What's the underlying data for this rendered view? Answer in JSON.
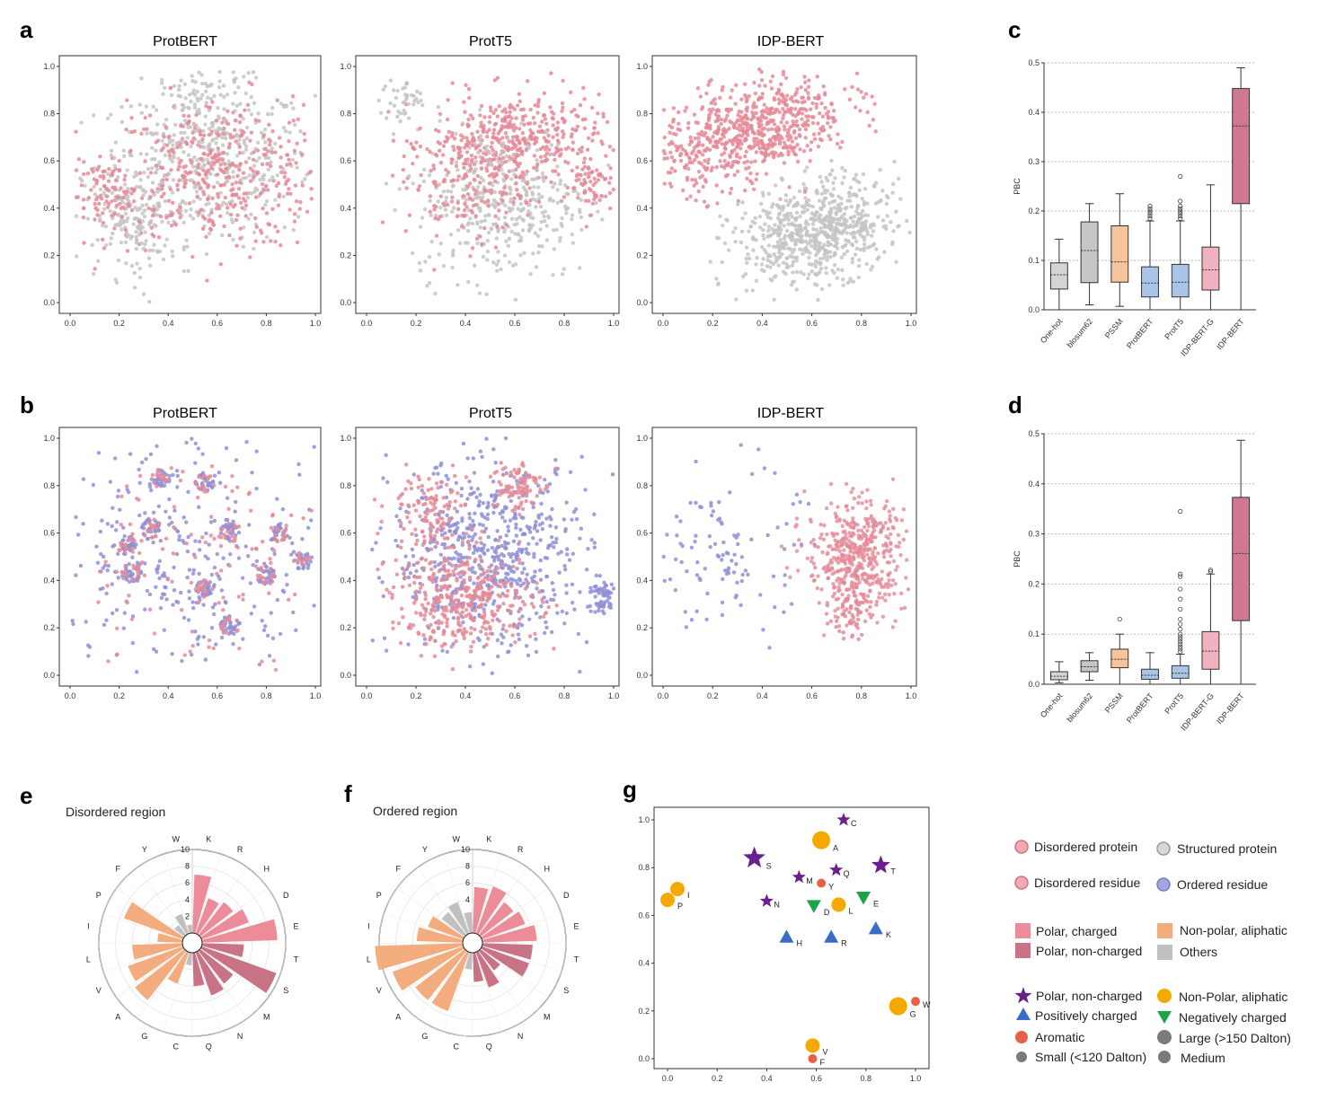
{
  "colors": {
    "disordered": "#e58a96",
    "structured": "#c4c4c4",
    "ordered": "#8f8fd6",
    "polar_charged": "#ec8c99",
    "polar_noncharged": "#c97387",
    "nonpolar_aliphatic": "#f3ac7e",
    "others": "#c0c0c0",
    "star": "#6b1f8e",
    "circle": "#f5a800",
    "triangle_up": "#3b6cc5",
    "triangle_down": "#1aa34a",
    "aromatic": "#e6604a",
    "gray_marker": "#7a7a7a",
    "box_onehot": "#d4d4d4",
    "box_blosum": "#c6c6c6",
    "box_pssm": "#f5c39c",
    "box_prot": "#a9c4e6",
    "box_idpg": "#f0b2bf",
    "box_idp": "#cf7890"
  },
  "panel_labels": {
    "a": "a",
    "b": "b",
    "c": "c",
    "d": "d",
    "e": "e",
    "f": "f",
    "g": "g"
  },
  "scatter_titles": {
    "a1": "ProtBERT",
    "a2": "ProtT5",
    "a3": "IDP-BERT",
    "b1": "ProtBERT",
    "b2": "ProtT5",
    "b3": "IDP-BERT"
  },
  "scatter_ticks": [
    "0.0",
    "0.2",
    "0.4",
    "0.6",
    "0.8",
    "1.0"
  ],
  "chart_data": [
    {
      "type": "box",
      "panel": "c",
      "ylabel": "PBC",
      "ylim": [
        0,
        0.5
      ],
      "yticks": [
        "0.0",
        "0.1",
        "0.2",
        "0.3",
        "0.4",
        "0.5"
      ],
      "categories": [
        "One-hot",
        "blosum62",
        "PSSM",
        "ProtBERT",
        "ProtT5",
        "IDP-BERT-G",
        "IDP-BERT"
      ],
      "boxes": [
        {
          "min": 0.0,
          "q1": 0.042,
          "median": 0.071,
          "q3": 0.095,
          "max": 0.143,
          "outliers": []
        },
        {
          "min": 0.01,
          "q1": 0.055,
          "median": 0.12,
          "q3": 0.178,
          "max": 0.215,
          "outliers": []
        },
        {
          "min": 0.007,
          "q1": 0.056,
          "median": 0.097,
          "q3": 0.17,
          "max": 0.235,
          "outliers": []
        },
        {
          "min": 0.0,
          "q1": 0.026,
          "median": 0.054,
          "q3": 0.087,
          "max": 0.18,
          "outliers": [
            0.185,
            0.19,
            0.195,
            0.2,
            0.205,
            0.21
          ]
        },
        {
          "min": 0.0,
          "q1": 0.026,
          "median": 0.056,
          "q3": 0.092,
          "max": 0.18,
          "outliers": [
            0.185,
            0.19,
            0.195,
            0.2,
            0.205,
            0.21,
            0.22,
            0.27
          ]
        },
        {
          "min": 0.0,
          "q1": 0.04,
          "median": 0.081,
          "q3": 0.127,
          "max": 0.253,
          "outliers": []
        },
        {
          "min": 0.0,
          "q1": 0.215,
          "median": 0.372,
          "q3": 0.448,
          "max": 0.49,
          "outliers": []
        }
      ]
    },
    {
      "type": "box",
      "panel": "d",
      "ylabel": "PBC",
      "ylim": [
        0,
        0.5
      ],
      "yticks": [
        "0.0",
        "0.1",
        "0.2",
        "0.3",
        "0.4",
        "0.5"
      ],
      "categories": [
        "One-hot",
        "blosum62",
        "PSSM",
        "ProtBERT",
        "ProtT5",
        "IDP-BERT-G",
        "IDP-BERT"
      ],
      "boxes": [
        {
          "min": 0.003,
          "q1": 0.009,
          "median": 0.016,
          "q3": 0.025,
          "max": 0.045,
          "outliers": []
        },
        {
          "min": 0.008,
          "q1": 0.025,
          "median": 0.035,
          "q3": 0.047,
          "max": 0.063,
          "outliers": []
        },
        {
          "min": 0.0,
          "q1": 0.033,
          "median": 0.05,
          "q3": 0.07,
          "max": 0.1,
          "outliers": [
            0.13
          ]
        },
        {
          "min": 0.0,
          "q1": 0.01,
          "median": 0.018,
          "q3": 0.03,
          "max": 0.063,
          "outliers": []
        },
        {
          "min": 0.0,
          "q1": 0.012,
          "median": 0.022,
          "q3": 0.037,
          "max": 0.06,
          "outliers": [
            0.065,
            0.07,
            0.075,
            0.08,
            0.085,
            0.09,
            0.095,
            0.1,
            0.11,
            0.12,
            0.13,
            0.15,
            0.17,
            0.19,
            0.215,
            0.22,
            0.345
          ]
        },
        {
          "min": 0.0,
          "q1": 0.03,
          "median": 0.066,
          "q3": 0.105,
          "max": 0.22,
          "outliers": [
            0.225,
            0.228
          ]
        },
        {
          "min": 0.0,
          "q1": 0.127,
          "median": 0.261,
          "q3": 0.373,
          "max": 0.487,
          "outliers": []
        }
      ]
    },
    {
      "type": "polar-bar",
      "panel": "e",
      "title": "Disordered region",
      "rticks": [
        "2",
        "4",
        "6",
        "8",
        "10"
      ],
      "rmax": 10,
      "categories": [
        "K",
        "R",
        "H",
        "D",
        "E",
        "T",
        "S",
        "M",
        "N",
        "Q",
        "C",
        "G",
        "A",
        "V",
        "L",
        "I",
        "P",
        "F",
        "Y",
        "W"
      ],
      "values": [
        7.0,
        4.5,
        5.0,
        6.0,
        9.0,
        5.0,
        9.5,
        5.0,
        5.5,
        4.0,
        1.5,
        4.0,
        7.5,
        7.0,
        6.0,
        3.0,
        7.5,
        1.5,
        2.5,
        1.0
      ],
      "groups": [
        "polar_charged",
        "polar_charged",
        "polar_charged",
        "polar_charged",
        "polar_charged",
        "polar_noncharged",
        "polar_noncharged",
        "polar_noncharged",
        "polar_noncharged",
        "polar_noncharged",
        "others",
        "nonpolar_aliphatic",
        "nonpolar_aliphatic",
        "nonpolar_aliphatic",
        "nonpolar_aliphatic",
        "nonpolar_aliphatic",
        "nonpolar_aliphatic",
        "others",
        "others",
        "others"
      ]
    },
    {
      "type": "polar-bar",
      "panel": "f",
      "title": "Ordered region",
      "rticks": [
        "2",
        "4",
        "6",
        "8",
        "10"
      ],
      "rmax": 10,
      "categories": [
        "K",
        "R",
        "H",
        "D",
        "E",
        "T",
        "S",
        "M",
        "N",
        "Q",
        "C",
        "G",
        "A",
        "V",
        "L",
        "I",
        "P",
        "F",
        "Y",
        "W"
      ],
      "values": [
        5.5,
        6.0,
        5.0,
        5.5,
        6.5,
        6.0,
        6.0,
        3.0,
        4.5,
        3.5,
        2.0,
        7.5,
        7.5,
        9.0,
        10.5,
        5.5,
        4.5,
        3.5,
        4.0,
        2.5
      ],
      "groups": [
        "polar_charged",
        "polar_charged",
        "polar_charged",
        "polar_charged",
        "polar_charged",
        "polar_noncharged",
        "polar_noncharged",
        "polar_noncharged",
        "polar_noncharged",
        "polar_noncharged",
        "others",
        "nonpolar_aliphatic",
        "nonpolar_aliphatic",
        "nonpolar_aliphatic",
        "nonpolar_aliphatic",
        "nonpolar_aliphatic",
        "nonpolar_aliphatic",
        "others",
        "others",
        "others"
      ]
    },
    {
      "type": "scatter",
      "panel": "g",
      "xlim": [
        0,
        1
      ],
      "ylim": [
        0,
        1
      ],
      "xticks": [
        "0.0",
        "0.2",
        "0.4",
        "0.6",
        "0.8",
        "1.0"
      ],
      "yticks": [
        "0.0",
        "0.2",
        "0.4",
        "0.6",
        "0.8",
        "1.0"
      ],
      "points": [
        {
          "label": "C",
          "x": 0.71,
          "y": 1.0,
          "shape": "star",
          "size": "small"
        },
        {
          "label": "A",
          "x": 0.62,
          "y": 0.915,
          "shape": "circle",
          "size": "large"
        },
        {
          "label": "S",
          "x": 0.35,
          "y": 0.84,
          "shape": "star",
          "size": "large"
        },
        {
          "label": "T",
          "x": 0.86,
          "y": 0.81,
          "shape": "star",
          "size": "medium"
        },
        {
          "label": "Q",
          "x": 0.68,
          "y": 0.79,
          "shape": "star",
          "size": "small"
        },
        {
          "label": "M",
          "x": 0.53,
          "y": 0.76,
          "shape": "star",
          "size": "small"
        },
        {
          "label": "Y",
          "x": 0.62,
          "y": 0.735,
          "shape": "aromatic",
          "size": "small"
        },
        {
          "label": "I",
          "x": 0.04,
          "y": 0.71,
          "shape": "circle",
          "size": "medium"
        },
        {
          "label": "E",
          "x": 0.79,
          "y": 0.675,
          "shape": "triangle_down",
          "size": "medium"
        },
        {
          "label": "P",
          "x": 0.0,
          "y": 0.665,
          "shape": "circle",
          "size": "medium"
        },
        {
          "label": "N",
          "x": 0.4,
          "y": 0.66,
          "shape": "star",
          "size": "small"
        },
        {
          "label": "L",
          "x": 0.69,
          "y": 0.645,
          "shape": "circle",
          "size": "medium"
        },
        {
          "label": "D",
          "x": 0.59,
          "y": 0.64,
          "shape": "triangle_down",
          "size": "medium"
        },
        {
          "label": "K",
          "x": 0.84,
          "y": 0.545,
          "shape": "triangle_up",
          "size": "medium"
        },
        {
          "label": "H",
          "x": 0.48,
          "y": 0.51,
          "shape": "triangle_up",
          "size": "medium"
        },
        {
          "label": "R",
          "x": 0.66,
          "y": 0.51,
          "shape": "triangle_up",
          "size": "medium"
        },
        {
          "label": "G",
          "x": 0.93,
          "y": 0.22,
          "shape": "circle",
          "size": "large"
        },
        {
          "label": "W",
          "x": 1.0,
          "y": 0.24,
          "shape": "aromatic",
          "size": "small"
        },
        {
          "label": "V",
          "x": 0.585,
          "y": 0.055,
          "shape": "circle",
          "size": "medium"
        },
        {
          "label": "F",
          "x": 0.585,
          "y": 0.0,
          "shape": "aromatic",
          "size": "small"
        }
      ]
    }
  ],
  "legend": {
    "disordered_protein": "Disordered protein",
    "structured_protein": "Structured protein",
    "disordered_residue": "Disordered residue",
    "ordered_residue": "Ordered residue",
    "polar_charged": "Polar, charged",
    "nonpolar_aliphatic": "Non-polar, aliphatic",
    "polar_noncharged": "Polar, non-charged",
    "others": "Others",
    "star_label": "Polar, non-charged",
    "circle_label": "Non-Polar, aliphatic",
    "tri_up_label": "Positively charged",
    "tri_down_label": "Negatively charged",
    "aromatic_label": "Aromatic",
    "large_label": "Large (>150 Dalton)",
    "small_label": "Small (<120 Dalton)",
    "medium_label": "Medium"
  }
}
